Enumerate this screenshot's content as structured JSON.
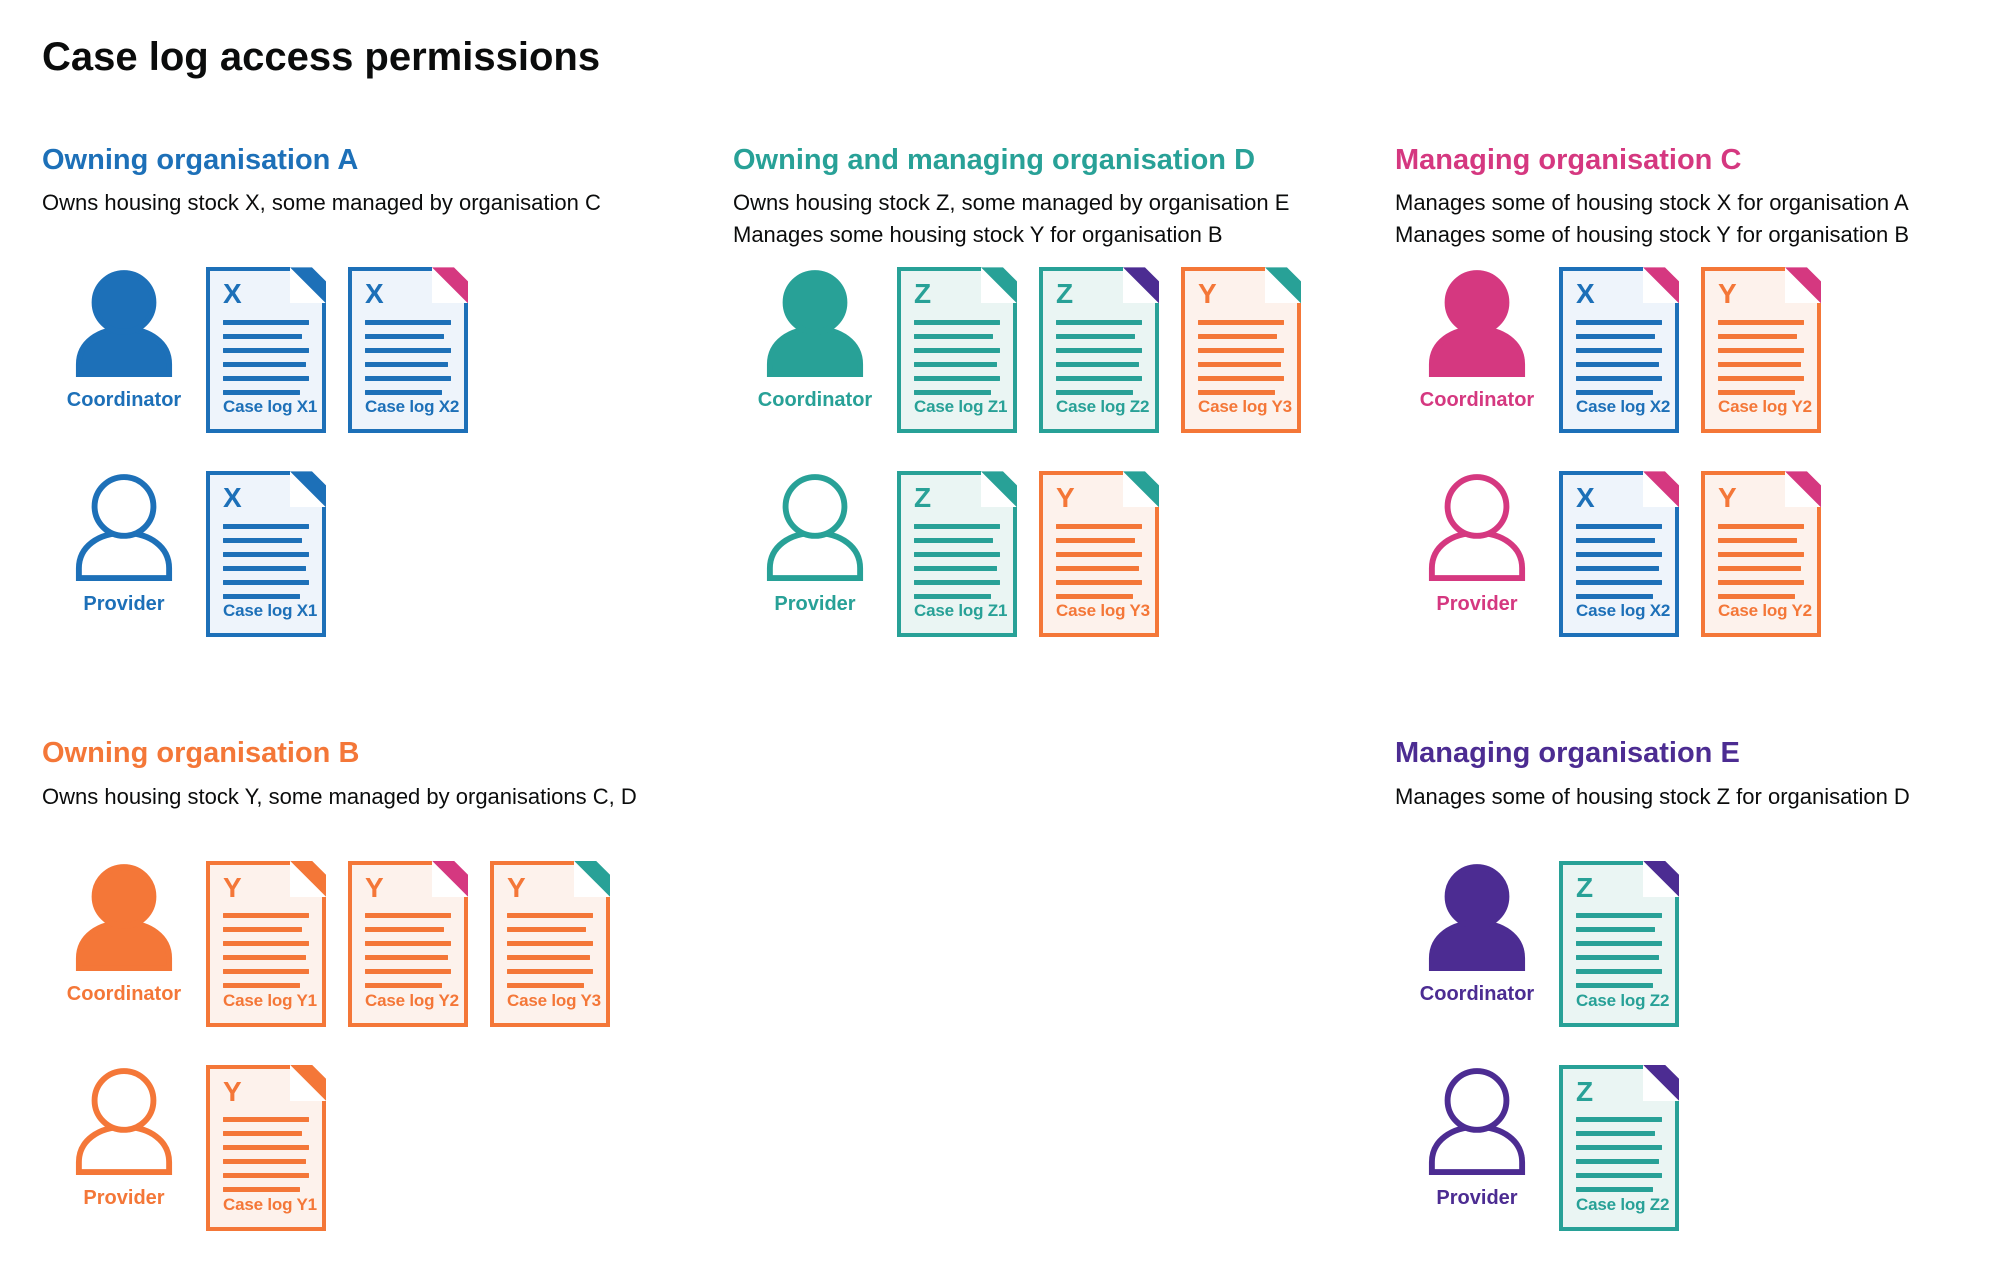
{
  "page_title": "Case log access permissions",
  "colors": {
    "blue": {
      "main": "#1d70b8",
      "tint": "#eef4fb"
    },
    "teal": {
      "main": "#28a197",
      "tint": "#eaf5f3"
    },
    "pink": {
      "main": "#d53880",
      "tint": "#fbeaf2"
    },
    "orange": {
      "main": "#f47738",
      "tint": "#fdf2ec"
    },
    "purple": {
      "main": "#4c2c92",
      "tint": "#ece9f4"
    }
  },
  "organisations": [
    {
      "heading": "Owning organisation A",
      "description": [
        "Owns housing stock X, some managed by organisation C"
      ],
      "color": "blue",
      "grid": {
        "column": 1,
        "row": 1
      },
      "rows": [
        {
          "role": "Coordinator",
          "person_style": "filled",
          "documents": [
            {
              "letter": "X",
              "label": "Case log X1",
              "doc_color": "blue",
              "fold_color": "blue"
            },
            {
              "letter": "X",
              "label": "Case log X2",
              "doc_color": "blue",
              "fold_color": "pink"
            }
          ]
        },
        {
          "role": "Provider",
          "person_style": "outline",
          "documents": [
            {
              "letter": "X",
              "label": "Case log X1",
              "doc_color": "blue",
              "fold_color": "blue"
            }
          ]
        }
      ]
    },
    {
      "heading": "Owning and managing organisation D",
      "description": [
        "Owns housing stock Z, some managed by organisation E",
        "Manages some housing stock Y for organisation B"
      ],
      "color": "teal",
      "grid": {
        "column": 2,
        "row": 1
      },
      "rows": [
        {
          "role": "Coordinator",
          "person_style": "filled",
          "documents": [
            {
              "letter": "Z",
              "label": "Case log Z1",
              "doc_color": "teal",
              "fold_color": "teal"
            },
            {
              "letter": "Z",
              "label": "Case log Z2",
              "doc_color": "teal",
              "fold_color": "purple"
            },
            {
              "letter": "Y",
              "label": "Case log Y3",
              "doc_color": "orange",
              "fold_color": "teal"
            }
          ]
        },
        {
          "role": "Provider",
          "person_style": "outline",
          "documents": [
            {
              "letter": "Z",
              "label": "Case log Z1",
              "doc_color": "teal",
              "fold_color": "teal"
            },
            {
              "letter": "Y",
              "label": "Case log Y3",
              "doc_color": "orange",
              "fold_color": "teal"
            }
          ]
        }
      ]
    },
    {
      "heading": "Managing organisation C",
      "description": [
        "Manages some of housing stock X for organisation A",
        "Manages some of housing stock Y for organisation B"
      ],
      "color": "pink",
      "grid": {
        "column": 3,
        "row": 1
      },
      "rows": [
        {
          "role": "Coordinator",
          "person_style": "filled",
          "documents": [
            {
              "letter": "X",
              "label": "Case log X2",
              "doc_color": "blue",
              "fold_color": "pink"
            },
            {
              "letter": "Y",
              "label": "Case log Y2",
              "doc_color": "orange",
              "fold_color": "pink"
            }
          ]
        },
        {
          "role": "Provider",
          "person_style": "outline",
          "documents": [
            {
              "letter": "X",
              "label": "Case log X2",
              "doc_color": "blue",
              "fold_color": "pink"
            },
            {
              "letter": "Y",
              "label": "Case log Y2",
              "doc_color": "orange",
              "fold_color": "pink"
            }
          ]
        }
      ]
    },
    {
      "heading": "Owning organisation B",
      "description": [
        "Owns housing stock Y, some managed by organisations C, D"
      ],
      "color": "orange",
      "grid": {
        "column": 1,
        "row": 2
      },
      "rows": [
        {
          "role": "Coordinator",
          "person_style": "filled",
          "documents": [
            {
              "letter": "Y",
              "label": "Case log Y1",
              "doc_color": "orange",
              "fold_color": "orange"
            },
            {
              "letter": "Y",
              "label": "Case log Y2",
              "doc_color": "orange",
              "fold_color": "pink"
            },
            {
              "letter": "Y",
              "label": "Case log Y3",
              "doc_color": "orange",
              "fold_color": "teal"
            }
          ]
        },
        {
          "role": "Provider",
          "person_style": "outline",
          "documents": [
            {
              "letter": "Y",
              "label": "Case log Y1",
              "doc_color": "orange",
              "fold_color": "orange"
            }
          ]
        }
      ]
    },
    {
      "heading": "Managing organisation E",
      "description": [
        "Manages some of housing stock Z for organisation D"
      ],
      "color": "purple",
      "grid": {
        "column": 3,
        "row": 2
      },
      "rows": [
        {
          "role": "Coordinator",
          "person_style": "filled",
          "documents": [
            {
              "letter": "Z",
              "label": "Case log Z2",
              "doc_color": "teal",
              "fold_color": "purple"
            }
          ]
        },
        {
          "role": "Provider",
          "person_style": "outline",
          "documents": [
            {
              "letter": "Z",
              "label": "Case log Z2",
              "doc_color": "teal",
              "fold_color": "purple"
            }
          ]
        }
      ]
    }
  ]
}
